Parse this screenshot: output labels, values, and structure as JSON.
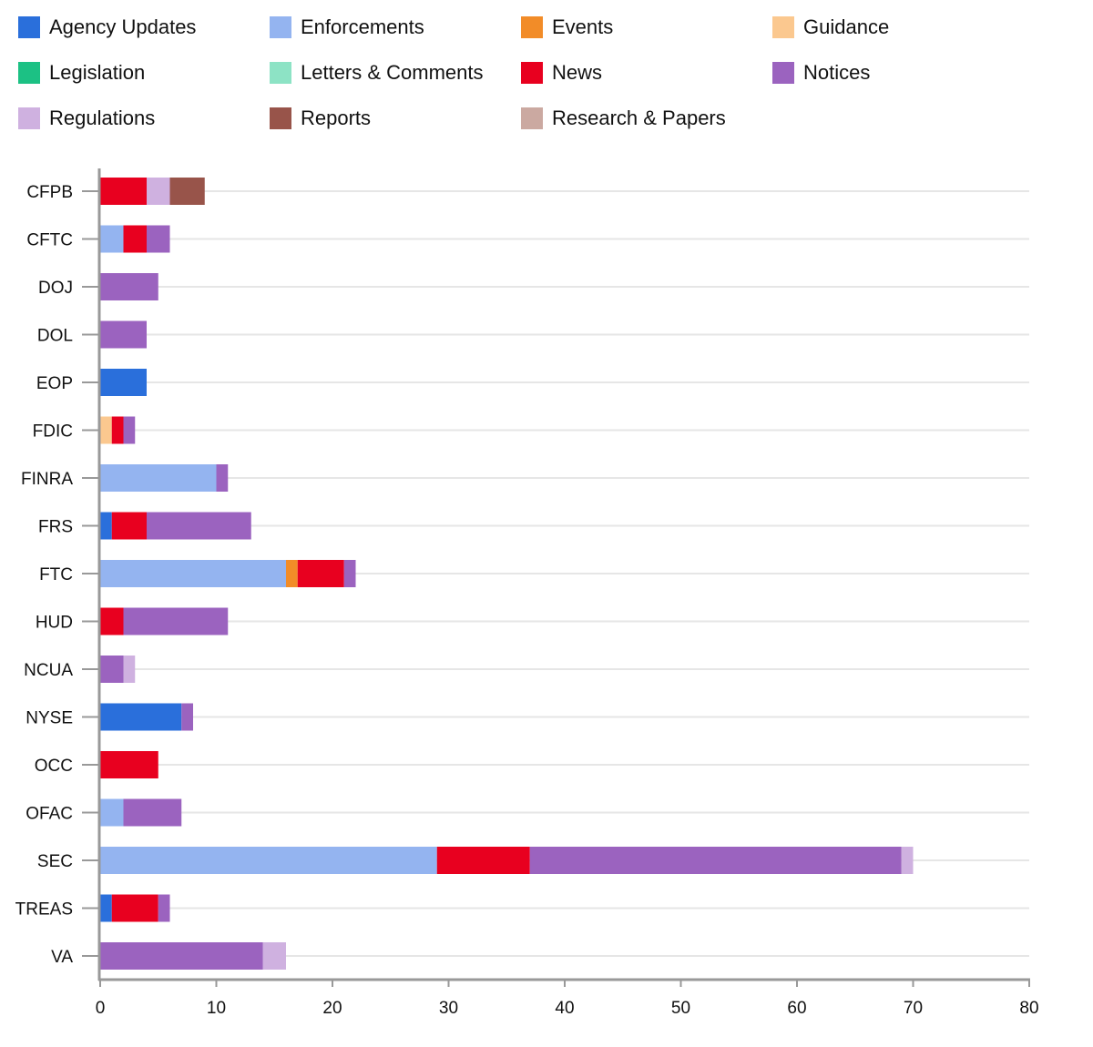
{
  "chart_data": {
    "type": "bar",
    "orientation": "horizontal",
    "stacked": true,
    "title": "",
    "xlabel": "",
    "ylabel": "",
    "xlim": [
      0,
      80
    ],
    "xticks": [
      0,
      10,
      20,
      30,
      40,
      50,
      60,
      70,
      80
    ],
    "grid": true,
    "legend_position": "top",
    "categories": [
      "CFPB",
      "CFTC",
      "DOJ",
      "DOL",
      "EOP",
      "FDIC",
      "FINRA",
      "FRS",
      "FTC",
      "HUD",
      "NCUA",
      "NYSE",
      "OCC",
      "OFAC",
      "SEC",
      "TREAS",
      "VA"
    ],
    "series": [
      {
        "name": "Agency Updates",
        "color": "#2a6fdb",
        "values": [
          0,
          0,
          0,
          0,
          4,
          0,
          0,
          1,
          0,
          0,
          0,
          7,
          0,
          0,
          0,
          1,
          0
        ]
      },
      {
        "name": "Enforcements",
        "color": "#94b4f0",
        "values": [
          0,
          2,
          0,
          0,
          0,
          0,
          10,
          0,
          16,
          0,
          0,
          0,
          0,
          2,
          29,
          0,
          0
        ]
      },
      {
        "name": "Events",
        "color": "#f28c28",
        "values": [
          0,
          0,
          0,
          0,
          0,
          0,
          0,
          0,
          1,
          0,
          0,
          0,
          0,
          0,
          0,
          0,
          0
        ]
      },
      {
        "name": "Guidance",
        "color": "#fbc88f",
        "values": [
          0,
          0,
          0,
          0,
          0,
          1,
          0,
          0,
          0,
          0,
          0,
          0,
          0,
          0,
          0,
          0,
          0
        ]
      },
      {
        "name": "Legislation",
        "color": "#1cc184",
        "values": [
          0,
          0,
          0,
          0,
          0,
          0,
          0,
          0,
          0,
          0,
          0,
          0,
          0,
          0,
          0,
          0,
          0
        ]
      },
      {
        "name": "Letters & Comments",
        "color": "#8de3c5",
        "values": [
          0,
          0,
          0,
          0,
          0,
          0,
          0,
          0,
          0,
          0,
          0,
          0,
          0,
          0,
          0,
          0,
          0
        ]
      },
      {
        "name": "News",
        "color": "#e8001f",
        "values": [
          4,
          2,
          0,
          0,
          0,
          1,
          0,
          3,
          4,
          2,
          0,
          0,
          5,
          0,
          8,
          4,
          0
        ]
      },
      {
        "name": "Notices",
        "color": "#9b63bf",
        "values": [
          0,
          2,
          5,
          4,
          0,
          1,
          1,
          9,
          1,
          9,
          2,
          1,
          0,
          5,
          32,
          1,
          14
        ]
      },
      {
        "name": "Regulations",
        "color": "#cfb1e0",
        "values": [
          2,
          0,
          0,
          0,
          0,
          0,
          0,
          0,
          0,
          0,
          1,
          0,
          0,
          0,
          1,
          0,
          2
        ]
      },
      {
        "name": "Reports",
        "color": "#98544a",
        "values": [
          3,
          0,
          0,
          0,
          0,
          0,
          0,
          0,
          0,
          0,
          0,
          0,
          0,
          0,
          0,
          0,
          0
        ]
      },
      {
        "name": "Research & Papers",
        "color": "#cba9a1",
        "values": [
          0,
          0,
          0,
          0,
          0,
          0,
          0,
          0,
          0,
          0,
          0,
          0,
          0,
          0,
          0,
          0,
          0
        ]
      }
    ]
  }
}
